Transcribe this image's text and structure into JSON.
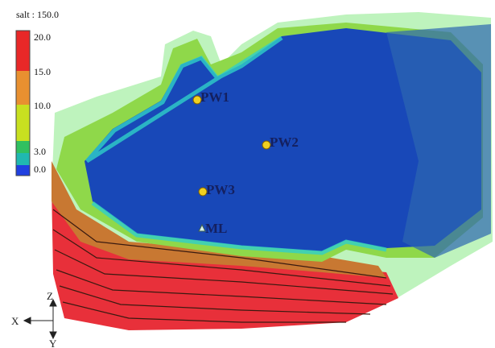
{
  "legend": {
    "title": "salt : 150.0",
    "labels": [
      "20.0",
      "15.0",
      "10.0",
      "3.0",
      "0.0"
    ]
  },
  "wells": [
    {
      "label": "PW1"
    },
    {
      "label": "PW2"
    },
    {
      "label": "PW3"
    },
    {
      "label": "ML"
    }
  ],
  "axes": {
    "z": "Z",
    "x": "X",
    "y": "Y"
  }
}
